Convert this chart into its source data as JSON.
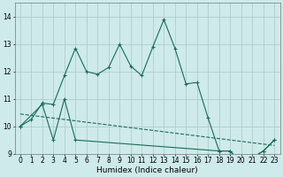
{
  "xlabel": "Humidex (Indice chaleur)",
  "xlim": [
    -0.5,
    23.5
  ],
  "ylim": [
    9.0,
    14.5
  ],
  "yticks": [
    9,
    10,
    11,
    12,
    13,
    14
  ],
  "xticks": [
    0,
    1,
    2,
    3,
    4,
    5,
    6,
    7,
    8,
    9,
    10,
    11,
    12,
    13,
    14,
    15,
    16,
    17,
    18,
    19,
    20,
    21,
    22,
    23
  ],
  "background_color": "#ceeaea",
  "grid_color": "#aecece",
  "line_color": "#1a6b5a",
  "line1_x": [
    0,
    1,
    2,
    3,
    4,
    5,
    6,
    7,
    8,
    9,
    10,
    11,
    12,
    13,
    14,
    15,
    16,
    17,
    18,
    19,
    20,
    21,
    22,
    23
  ],
  "line1_y": [
    10.0,
    10.25,
    10.85,
    10.8,
    11.85,
    12.85,
    12.0,
    11.9,
    12.15,
    13.0,
    12.2,
    11.85,
    12.9,
    13.9,
    12.85,
    11.55,
    11.6,
    10.3,
    9.1,
    9.1,
    8.65,
    8.85,
    9.1,
    9.5
  ],
  "line2_x": [
    0,
    2,
    3,
    4,
    5,
    18,
    19,
    20,
    21,
    22,
    23
  ],
  "line2_y": [
    10.0,
    10.8,
    9.5,
    11.0,
    9.5,
    9.1,
    9.1,
    8.65,
    8.85,
    9.1,
    9.5
  ],
  "line3_x": [
    0,
    23
  ],
  "line3_y": [
    10.45,
    9.3
  ]
}
